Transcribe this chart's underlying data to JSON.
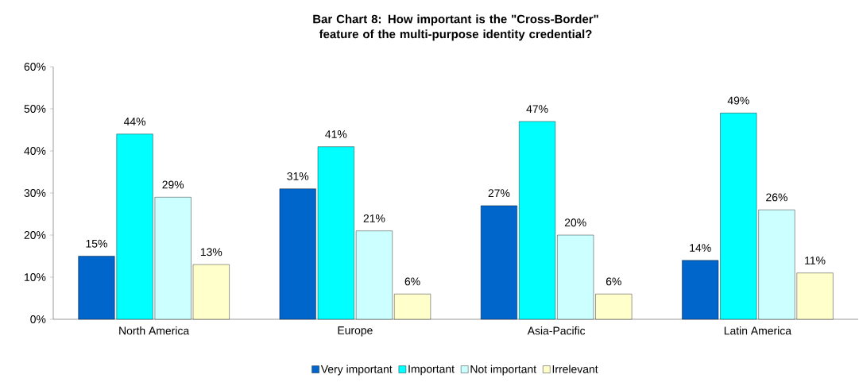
{
  "chart_data": {
    "type": "bar",
    "title": "Bar Chart 8: How important is the \"Cross-Border\" feature of the multi-purpose identity credential?",
    "categories": [
      "North America",
      "Europe",
      "Asia-Pacific",
      "Latin America"
    ],
    "series": [
      {
        "name": "Very important",
        "color": "#0066cc",
        "values": [
          15,
          31,
          27,
          14
        ],
        "value_labels": [
          "15%",
          "31%",
          "27%",
          "14%"
        ]
      },
      {
        "name": "Important",
        "color": "#00ffff",
        "values": [
          44,
          41,
          47,
          49
        ],
        "value_labels": [
          "44%",
          "41%",
          "47%",
          "49%"
        ]
      },
      {
        "name": "Not important",
        "color": "#ccffff",
        "values": [
          29,
          21,
          20,
          26
        ],
        "value_labels": [
          "29%",
          "21%",
          "20%",
          "26%"
        ]
      },
      {
        "name": "Irrelevant",
        "color": "#ffffcc",
        "values": [
          13,
          6,
          6,
          11
        ],
        "value_labels": [
          "13%",
          "6%",
          "6%",
          "11%"
        ]
      }
    ],
    "ylim": [
      0,
      60
    ],
    "yticks": [
      {
        "value": 0,
        "label": "0%"
      },
      {
        "value": 10,
        "label": "10%"
      },
      {
        "value": 20,
        "label": "20%"
      },
      {
        "value": 30,
        "label": "30%"
      },
      {
        "value": 40,
        "label": "40%"
      },
      {
        "value": 50,
        "label": "50%"
      },
      {
        "value": 60,
        "label": "60%"
      }
    ],
    "legend": "bottom",
    "grid": false
  }
}
